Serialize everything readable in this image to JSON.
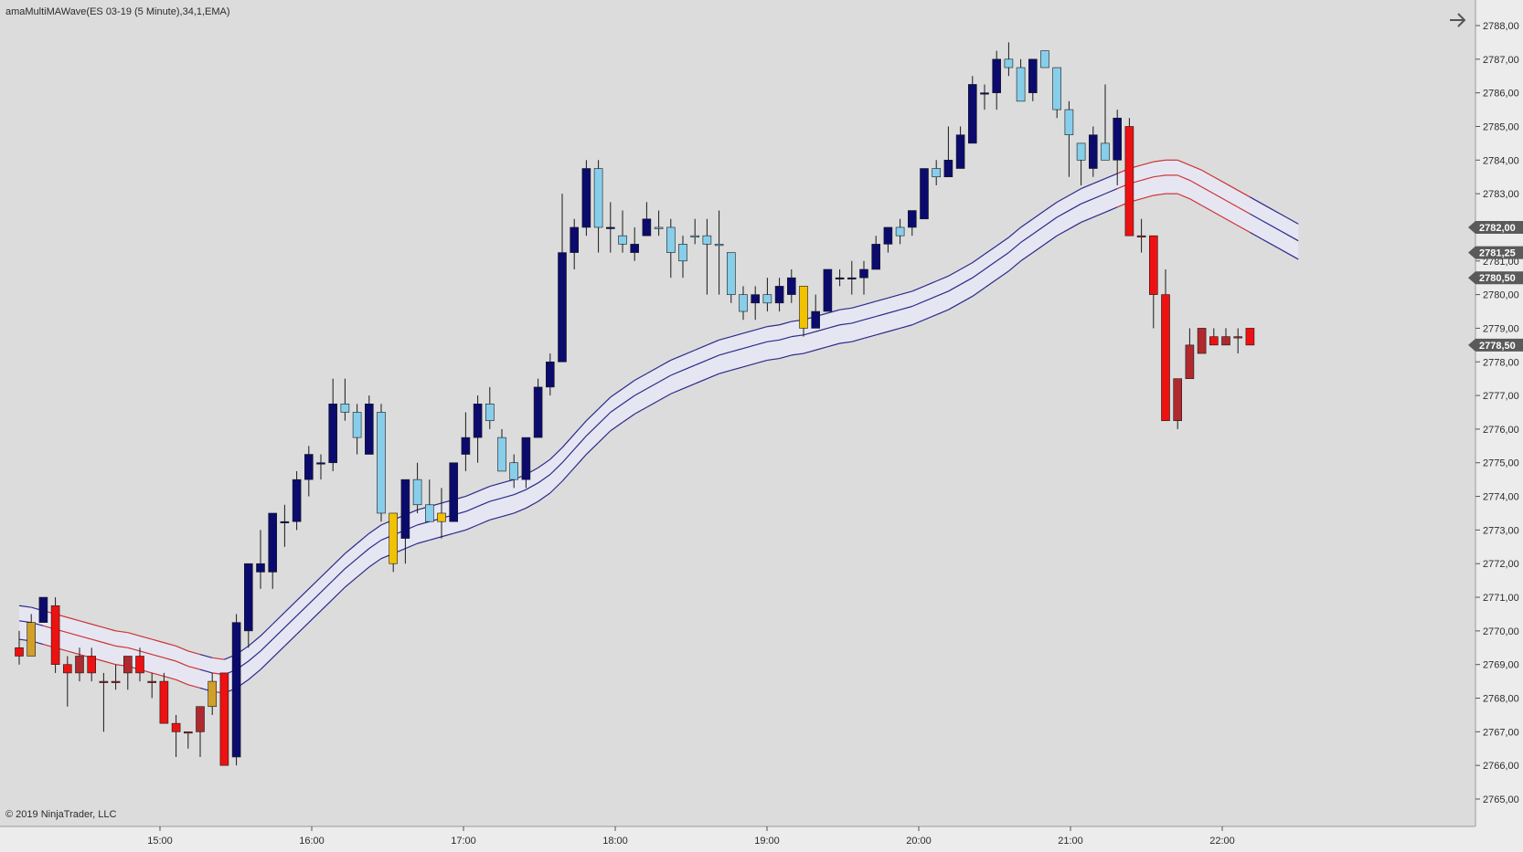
{
  "indicator_label": "amaMultiMAWave(ES 03-19 (5 Minute),34,1,EMA)",
  "copyright": "© 2019 NinjaTrader, LLC",
  "nav_icon": "arrow-right-icon",
  "colors": {
    "background": "#dcdcdc",
    "axis_bg": "#ececec",
    "bull_strong": "#0b0b6e",
    "bull_weak": "#87ceeb",
    "bear_strong": "#ee1111",
    "bear_weak": "#b0292e",
    "neutral_up": "#f2c200",
    "neutral_down": "#d1a02a",
    "band_line_up": "#2a2a8c",
    "band_line_down": "#cc3333",
    "band_fill": "#e6e6f2"
  },
  "chart_data": {
    "type": "candlestick",
    "symbol": "ES 03-19 (5 Minute)",
    "x_ticks": [
      "15:00",
      "16:00",
      "17:00",
      "18:00",
      "19:00",
      "20:00",
      "21:00",
      "22:00"
    ],
    "y_range": [
      2765.0,
      2788.0
    ],
    "y_ticks": [
      "2788,00",
      "2787,00",
      "2786,00",
      "2785,00",
      "2784,00",
      "2783,00",
      "2782,00",
      "2781,00",
      "2780,00",
      "2779,00",
      "2778,00",
      "2777,00",
      "2776,00",
      "2775,00",
      "2774,00",
      "2773,00",
      "2772,00",
      "2771,00",
      "2770,00",
      "2769,00",
      "2768,00",
      "2767,00",
      "2766,00",
      "2765,00"
    ],
    "price_markers": [
      {
        "label": "2782,00",
        "value": 2782.0
      },
      {
        "label": "2781,25",
        "value": 2781.25
      },
      {
        "label": "2780,50",
        "value": 2780.5
      },
      {
        "label": "2778,50",
        "value": 2778.5
      }
    ],
    "candles": [
      {
        "o": 2769.5,
        "h": 2770.0,
        "l": 2769.0,
        "c": 2769.25,
        "color": "bear_strong"
      },
      {
        "o": 2769.25,
        "h": 2770.5,
        "l": 2769.25,
        "c": 2770.25,
        "color": "neutral_down"
      },
      {
        "o": 2770.25,
        "h": 2771.0,
        "l": 2770.25,
        "c": 2771.0,
        "color": "bull_strong"
      },
      {
        "o": 2770.75,
        "h": 2771.0,
        "l": 2768.75,
        "c": 2769.0,
        "color": "bear_strong"
      },
      {
        "o": 2769.0,
        "h": 2769.25,
        "l": 2767.75,
        "c": 2768.75,
        "color": "bear_strong"
      },
      {
        "o": 2769.25,
        "h": 2769.5,
        "l": 2768.5,
        "c": 2768.75,
        "color": "bear_weak"
      },
      {
        "o": 2769.25,
        "h": 2769.5,
        "l": 2768.5,
        "c": 2768.75,
        "color": "bear_strong"
      },
      {
        "o": 2768.5,
        "h": 2768.75,
        "l": 2767.0,
        "c": 2768.5,
        "color": "bear_weak"
      },
      {
        "o": 2768.5,
        "h": 2769.0,
        "l": 2768.25,
        "c": 2768.5,
        "color": "bear_weak"
      },
      {
        "o": 2768.75,
        "h": 2769.25,
        "l": 2768.25,
        "c": 2769.25,
        "color": "bear_weak"
      },
      {
        "o": 2769.25,
        "h": 2769.5,
        "l": 2768.5,
        "c": 2768.75,
        "color": "bear_strong"
      },
      {
        "o": 2768.5,
        "h": 2768.75,
        "l": 2768.0,
        "c": 2768.5,
        "color": "bear_weak"
      },
      {
        "o": 2768.5,
        "h": 2768.75,
        "l": 2767.25,
        "c": 2767.25,
        "color": "bear_strong"
      },
      {
        "o": 2767.25,
        "h": 2767.5,
        "l": 2766.25,
        "c": 2767.0,
        "color": "bear_strong"
      },
      {
        "o": 2767.0,
        "h": 2767.0,
        "l": 2766.5,
        "c": 2767.0,
        "color": "bear_weak"
      },
      {
        "o": 2767.0,
        "h": 2767.75,
        "l": 2766.25,
        "c": 2767.75,
        "color": "bear_weak"
      },
      {
        "o": 2767.75,
        "h": 2768.75,
        "l": 2767.5,
        "c": 2768.5,
        "color": "neutral_down"
      },
      {
        "o": 2768.75,
        "h": 2768.75,
        "l": 2766.0,
        "c": 2766.0,
        "color": "bear_strong"
      },
      {
        "o": 2766.25,
        "h": 2770.5,
        "l": 2766.0,
        "c": 2770.25,
        "color": "bull_strong"
      },
      {
        "o": 2770.0,
        "h": 2772.0,
        "l": 2769.5,
        "c": 2772.0,
        "color": "bull_strong"
      },
      {
        "o": 2771.75,
        "h": 2773.0,
        "l": 2771.25,
        "c": 2772.0,
        "color": "bull_strong"
      },
      {
        "o": 2771.75,
        "h": 2773.5,
        "l": 2771.25,
        "c": 2773.5,
        "color": "bull_strong"
      },
      {
        "o": 2773.25,
        "h": 2773.75,
        "l": 2772.5,
        "c": 2773.25,
        "color": "bull_strong"
      },
      {
        "o": 2773.25,
        "h": 2774.75,
        "l": 2773.0,
        "c": 2774.5,
        "color": "bull_strong"
      },
      {
        "o": 2774.5,
        "h": 2775.5,
        "l": 2774.0,
        "c": 2775.25,
        "color": "bull_strong"
      },
      {
        "o": 2775.0,
        "h": 2775.25,
        "l": 2774.5,
        "c": 2775.0,
        "color": "bull_strong"
      },
      {
        "o": 2775.0,
        "h": 2777.5,
        "l": 2774.75,
        "c": 2776.75,
        "color": "bull_strong"
      },
      {
        "o": 2776.75,
        "h": 2777.5,
        "l": 2776.25,
        "c": 2776.5,
        "color": "bull_weak"
      },
      {
        "o": 2776.5,
        "h": 2776.75,
        "l": 2775.25,
        "c": 2775.75,
        "color": "bull_weak"
      },
      {
        "o": 2775.25,
        "h": 2777.0,
        "l": 2775.25,
        "c": 2776.75,
        "color": "bull_strong"
      },
      {
        "o": 2776.5,
        "h": 2776.75,
        "l": 2773.25,
        "c": 2773.5,
        "color": "bull_weak"
      },
      {
        "o": 2773.5,
        "h": 2773.5,
        "l": 2771.75,
        "c": 2772.0,
        "color": "neutral_up"
      },
      {
        "o": 2772.75,
        "h": 2774.5,
        "l": 2772.0,
        "c": 2774.5,
        "color": "bull_strong"
      },
      {
        "o": 2774.5,
        "h": 2775.0,
        "l": 2773.5,
        "c": 2773.75,
        "color": "bull_weak"
      },
      {
        "o": 2773.75,
        "h": 2774.5,
        "l": 2773.25,
        "c": 2773.25,
        "color": "bull_weak"
      },
      {
        "o": 2773.25,
        "h": 2774.25,
        "l": 2772.75,
        "c": 2773.5,
        "color": "neutral_up"
      },
      {
        "o": 2773.25,
        "h": 2775.0,
        "l": 2773.25,
        "c": 2775.0,
        "color": "bull_strong"
      },
      {
        "o": 2775.25,
        "h": 2776.5,
        "l": 2774.75,
        "c": 2775.75,
        "color": "bull_strong"
      },
      {
        "o": 2775.75,
        "h": 2777.0,
        "l": 2775.0,
        "c": 2776.75,
        "color": "bull_strong"
      },
      {
        "o": 2776.75,
        "h": 2777.25,
        "l": 2776.0,
        "c": 2776.25,
        "color": "bull_weak"
      },
      {
        "o": 2775.75,
        "h": 2776.0,
        "l": 2774.75,
        "c": 2774.75,
        "color": "bull_weak"
      },
      {
        "o": 2775.0,
        "h": 2775.25,
        "l": 2774.25,
        "c": 2774.5,
        "color": "bull_weak"
      },
      {
        "o": 2774.5,
        "h": 2775.75,
        "l": 2774.25,
        "c": 2775.75,
        "color": "bull_strong"
      },
      {
        "o": 2775.75,
        "h": 2777.5,
        "l": 2775.75,
        "c": 2777.25,
        "color": "bull_strong"
      },
      {
        "o": 2777.25,
        "h": 2778.25,
        "l": 2777.0,
        "c": 2778.0,
        "color": "bull_strong"
      },
      {
        "o": 2778.0,
        "h": 2783.0,
        "l": 2778.0,
        "c": 2781.25,
        "color": "bull_strong"
      },
      {
        "o": 2781.25,
        "h": 2782.25,
        "l": 2780.75,
        "c": 2782.0,
        "color": "bull_strong"
      },
      {
        "o": 2782.0,
        "h": 2784.0,
        "l": 2781.75,
        "c": 2783.75,
        "color": "bull_strong"
      },
      {
        "o": 2783.75,
        "h": 2784.0,
        "l": 2781.25,
        "c": 2782.0,
        "color": "bull_weak"
      },
      {
        "o": 2782.0,
        "h": 2782.75,
        "l": 2781.25,
        "c": 2782.0,
        "color": "bull_strong"
      },
      {
        "o": 2781.75,
        "h": 2782.5,
        "l": 2781.25,
        "c": 2781.5,
        "color": "bull_weak"
      },
      {
        "o": 2781.5,
        "h": 2782.0,
        "l": 2781.0,
        "c": 2781.25,
        "color": "bull_strong"
      },
      {
        "o": 2781.75,
        "h": 2782.75,
        "l": 2781.75,
        "c": 2782.25,
        "color": "bull_strong"
      },
      {
        "o": 2782.0,
        "h": 2782.5,
        "l": 2781.75,
        "c": 2782.0,
        "color": "bull_weak"
      },
      {
        "o": 2782.0,
        "h": 2782.25,
        "l": 2780.5,
        "c": 2781.25,
        "color": "bull_weak"
      },
      {
        "o": 2781.0,
        "h": 2781.75,
        "l": 2780.5,
        "c": 2781.5,
        "color": "bull_weak"
      },
      {
        "o": 2781.75,
        "h": 2782.25,
        "l": 2781.5,
        "c": 2781.75,
        "color": "bull_weak"
      },
      {
        "o": 2781.75,
        "h": 2782.25,
        "l": 2780.0,
        "c": 2781.5,
        "color": "bull_weak"
      },
      {
        "o": 2781.5,
        "h": 2782.5,
        "l": 2780.0,
        "c": 2781.5,
        "color": "bull_weak"
      },
      {
        "o": 2781.25,
        "h": 2781.25,
        "l": 2779.75,
        "c": 2780.0,
        "color": "bull_weak"
      },
      {
        "o": 2779.5,
        "h": 2780.25,
        "l": 2779.25,
        "c": 2780.0,
        "color": "bull_weak"
      },
      {
        "o": 2780.0,
        "h": 2780.25,
        "l": 2779.25,
        "c": 2779.75,
        "color": "bull_strong"
      },
      {
        "o": 2779.75,
        "h": 2780.5,
        "l": 2779.5,
        "c": 2780.0,
        "color": "bull_weak"
      },
      {
        "o": 2779.75,
        "h": 2780.5,
        "l": 2779.5,
        "c": 2780.25,
        "color": "bull_strong"
      },
      {
        "o": 2780.0,
        "h": 2780.75,
        "l": 2779.75,
        "c": 2780.5,
        "color": "bull_strong"
      },
      {
        "o": 2780.25,
        "h": 2780.25,
        "l": 2778.75,
        "c": 2779.0,
        "color": "neutral_up"
      },
      {
        "o": 2779.0,
        "h": 2780.0,
        "l": 2779.0,
        "c": 2779.5,
        "color": "bull_strong"
      },
      {
        "o": 2779.5,
        "h": 2780.75,
        "l": 2779.5,
        "c": 2780.75,
        "color": "bull_strong"
      },
      {
        "o": 2780.5,
        "h": 2780.75,
        "l": 2780.25,
        "c": 2780.5,
        "color": "bull_strong"
      },
      {
        "o": 2780.5,
        "h": 2781.0,
        "l": 2780.0,
        "c": 2780.5,
        "color": "bull_strong"
      },
      {
        "o": 2780.5,
        "h": 2781.0,
        "l": 2780.0,
        "c": 2780.75,
        "color": "bull_strong"
      },
      {
        "o": 2780.75,
        "h": 2781.75,
        "l": 2780.75,
        "c": 2781.5,
        "color": "bull_strong"
      },
      {
        "o": 2781.5,
        "h": 2782.0,
        "l": 2781.25,
        "c": 2782.0,
        "color": "bull_strong"
      },
      {
        "o": 2781.75,
        "h": 2782.25,
        "l": 2781.5,
        "c": 2782.0,
        "color": "bull_weak"
      },
      {
        "o": 2782.0,
        "h": 2782.5,
        "l": 2781.75,
        "c": 2782.5,
        "color": "bull_strong"
      },
      {
        "o": 2782.25,
        "h": 2783.75,
        "l": 2782.25,
        "c": 2783.75,
        "color": "bull_strong"
      },
      {
        "o": 2783.5,
        "h": 2784.0,
        "l": 2783.25,
        "c": 2783.75,
        "color": "bull_weak"
      },
      {
        "o": 2783.5,
        "h": 2785.0,
        "l": 2783.5,
        "c": 2784.0,
        "color": "bull_strong"
      },
      {
        "o": 2783.75,
        "h": 2785.0,
        "l": 2783.75,
        "c": 2784.75,
        "color": "bull_strong"
      },
      {
        "o": 2784.5,
        "h": 2786.5,
        "l": 2784.5,
        "c": 2786.25,
        "color": "bull_strong"
      },
      {
        "o": 2786.0,
        "h": 2786.25,
        "l": 2785.5,
        "c": 2786.0,
        "color": "bull_strong"
      },
      {
        "o": 2786.0,
        "h": 2787.25,
        "l": 2785.5,
        "c": 2787.0,
        "color": "bull_strong"
      },
      {
        "o": 2787.0,
        "h": 2787.5,
        "l": 2786.5,
        "c": 2786.75,
        "color": "bull_weak"
      },
      {
        "o": 2786.75,
        "h": 2787.0,
        "l": 2785.75,
        "c": 2785.75,
        "color": "bull_weak"
      },
      {
        "o": 2786.0,
        "h": 2787.0,
        "l": 2785.75,
        "c": 2787.0,
        "color": "bull_strong"
      },
      {
        "o": 2787.25,
        "h": 2787.25,
        "l": 2786.75,
        "c": 2786.75,
        "color": "bull_weak"
      },
      {
        "o": 2786.75,
        "h": 2786.75,
        "l": 2785.25,
        "c": 2785.5,
        "color": "bull_weak"
      },
      {
        "o": 2785.5,
        "h": 2785.75,
        "l": 2783.5,
        "c": 2784.75,
        "color": "bull_weak"
      },
      {
        "o": 2784.5,
        "h": 2784.5,
        "l": 2783.25,
        "c": 2784.0,
        "color": "bull_weak"
      },
      {
        "o": 2783.75,
        "h": 2785.0,
        "l": 2783.5,
        "c": 2784.75,
        "color": "bull_strong"
      },
      {
        "o": 2784.5,
        "h": 2786.25,
        "l": 2784.0,
        "c": 2784.0,
        "color": "bull_weak"
      },
      {
        "o": 2784.0,
        "h": 2785.5,
        "l": 2783.25,
        "c": 2785.25,
        "color": "bull_strong"
      },
      {
        "o": 2785.0,
        "h": 2785.25,
        "l": 2781.75,
        "c": 2781.75,
        "color": "bear_strong"
      },
      {
        "o": 2781.75,
        "h": 2782.25,
        "l": 2781.25,
        "c": 2781.75,
        "color": "bear_weak"
      },
      {
        "o": 2781.75,
        "h": 2781.75,
        "l": 2779.0,
        "c": 2780.0,
        "color": "bear_strong"
      },
      {
        "o": 2780.0,
        "h": 2780.75,
        "l": 2776.25,
        "c": 2776.25,
        "color": "bear_strong"
      },
      {
        "o": 2776.25,
        "h": 2777.5,
        "l": 2776.0,
        "c": 2777.5,
        "color": "bear_weak"
      },
      {
        "o": 2777.5,
        "h": 2779.0,
        "l": 2777.5,
        "c": 2778.5,
        "color": "bear_weak"
      },
      {
        "o": 2778.25,
        "h": 2779.0,
        "l": 2778.25,
        "c": 2779.0,
        "color": "bear_weak"
      },
      {
        "o": 2778.75,
        "h": 2779.0,
        "l": 2778.5,
        "c": 2778.5,
        "color": "bear_strong"
      },
      {
        "o": 2778.5,
        "h": 2779.0,
        "l": 2778.5,
        "c": 2778.75,
        "color": "bear_weak"
      },
      {
        "o": 2778.75,
        "h": 2779.0,
        "l": 2778.25,
        "c": 2778.75,
        "color": "bear_weak"
      },
      {
        "o": 2779.0,
        "h": 2779.0,
        "l": 2778.5,
        "c": 2778.5,
        "color": "bear_strong"
      }
    ],
    "band_upper": [
      2770.75,
      2770.7,
      2770.6,
      2770.5,
      2770.4,
      2770.3,
      2770.2,
      2770.1,
      2770.0,
      2769.95,
      2769.85,
      2769.75,
      2769.65,
      2769.55,
      2769.4,
      2769.3,
      2769.2,
      2769.15,
      2769.3,
      2769.55,
      2769.85,
      2770.2,
      2770.55,
      2770.9,
      2771.25,
      2771.6,
      2771.95,
      2772.3,
      2772.6,
      2772.9,
      2773.15,
      2773.3,
      2773.45,
      2773.6,
      2773.7,
      2773.8,
      2773.9,
      2774.0,
      2774.15,
      2774.3,
      2774.4,
      2774.5,
      2774.65,
      2774.85,
      2775.1,
      2775.45,
      2775.85,
      2776.25,
      2776.6,
      2776.95,
      2777.2,
      2777.45,
      2777.65,
      2777.85,
      2778.05,
      2778.2,
      2778.35,
      2778.5,
      2778.65,
      2778.75,
      2778.85,
      2778.95,
      2779.05,
      2779.1,
      2779.2,
      2779.25,
      2779.35,
      2779.45,
      2779.55,
      2779.6,
      2779.7,
      2779.8,
      2779.9,
      2780.0,
      2780.1,
      2780.25,
      2780.4,
      2780.55,
      2780.75,
      2780.95,
      2781.2,
      2781.45,
      2781.7,
      2782.0,
      2782.25,
      2782.5,
      2782.75,
      2782.95,
      2783.15,
      2783.3,
      2783.45,
      2783.6,
      2783.75,
      2783.85,
      2783.95,
      2784.0,
      2784.0,
      2783.85,
      2783.7,
      2783.5,
      2783.3,
      2783.1,
      2782.9,
      2782.7,
      2782.5,
      2782.3,
      2782.1
    ],
    "band_mid": [
      2770.3,
      2770.25,
      2770.15,
      2770.05,
      2769.95,
      2769.85,
      2769.75,
      2769.65,
      2769.55,
      2769.5,
      2769.4,
      2769.3,
      2769.2,
      2769.1,
      2768.95,
      2768.85,
      2768.75,
      2768.7,
      2768.85,
      2769.1,
      2769.4,
      2769.75,
      2770.1,
      2770.45,
      2770.8,
      2771.15,
      2771.5,
      2771.85,
      2772.15,
      2772.45,
      2772.7,
      2772.85,
      2773.0,
      2773.15,
      2773.25,
      2773.35,
      2773.45,
      2773.55,
      2773.7,
      2773.85,
      2773.95,
      2774.05,
      2774.2,
      2774.4,
      2774.65,
      2775.0,
      2775.4,
      2775.8,
      2776.15,
      2776.5,
      2776.75,
      2777.0,
      2777.2,
      2777.4,
      2777.6,
      2777.75,
      2777.9,
      2778.05,
      2778.2,
      2778.3,
      2778.4,
      2778.5,
      2778.6,
      2778.65,
      2778.75,
      2778.8,
      2778.9,
      2779.0,
      2779.1,
      2779.15,
      2779.25,
      2779.35,
      2779.45,
      2779.55,
      2779.65,
      2779.8,
      2779.95,
      2780.1,
      2780.3,
      2780.5,
      2780.75,
      2781.0,
      2781.25,
      2781.55,
      2781.8,
      2782.05,
      2782.3,
      2782.5,
      2782.7,
      2782.85,
      2783.0,
      2783.15,
      2783.3,
      2783.4,
      2783.5,
      2783.55,
      2783.55,
      2783.4,
      2783.2,
      2783.0,
      2782.8,
      2782.6,
      2782.4,
      2782.2,
      2782.0,
      2781.8,
      2781.6
    ],
    "band_lower": [
      2769.75,
      2769.7,
      2769.6,
      2769.5,
      2769.4,
      2769.3,
      2769.2,
      2769.1,
      2769.0,
      2768.95,
      2768.85,
      2768.75,
      2768.65,
      2768.55,
      2768.4,
      2768.3,
      2768.2,
      2768.15,
      2768.3,
      2768.55,
      2768.85,
      2769.2,
      2769.55,
      2769.9,
      2770.25,
      2770.6,
      2770.95,
      2771.3,
      2771.6,
      2771.9,
      2772.15,
      2772.3,
      2772.45,
      2772.6,
      2772.7,
      2772.8,
      2772.9,
      2773.0,
      2773.15,
      2773.3,
      2773.4,
      2773.5,
      2773.65,
      2773.85,
      2774.1,
      2774.45,
      2774.85,
      2775.25,
      2775.6,
      2775.95,
      2776.2,
      2776.45,
      2776.65,
      2776.85,
      2777.05,
      2777.2,
      2777.35,
      2777.5,
      2777.65,
      2777.75,
      2777.85,
      2777.95,
      2778.05,
      2778.1,
      2778.2,
      2778.25,
      2778.35,
      2778.45,
      2778.55,
      2778.6,
      2778.7,
      2778.8,
      2778.9,
      2779.0,
      2779.1,
      2779.25,
      2779.4,
      2779.55,
      2779.75,
      2779.95,
      2780.2,
      2780.45,
      2780.7,
      2781.0,
      2781.25,
      2781.5,
      2781.75,
      2781.95,
      2782.15,
      2782.3,
      2782.45,
      2782.6,
      2782.75,
      2782.85,
      2782.95,
      2783.0,
      2783.0,
      2782.85,
      2782.65,
      2782.45,
      2782.25,
      2782.05,
      2781.85,
      2781.65,
      2781.45,
      2781.25,
      2781.05
    ]
  }
}
